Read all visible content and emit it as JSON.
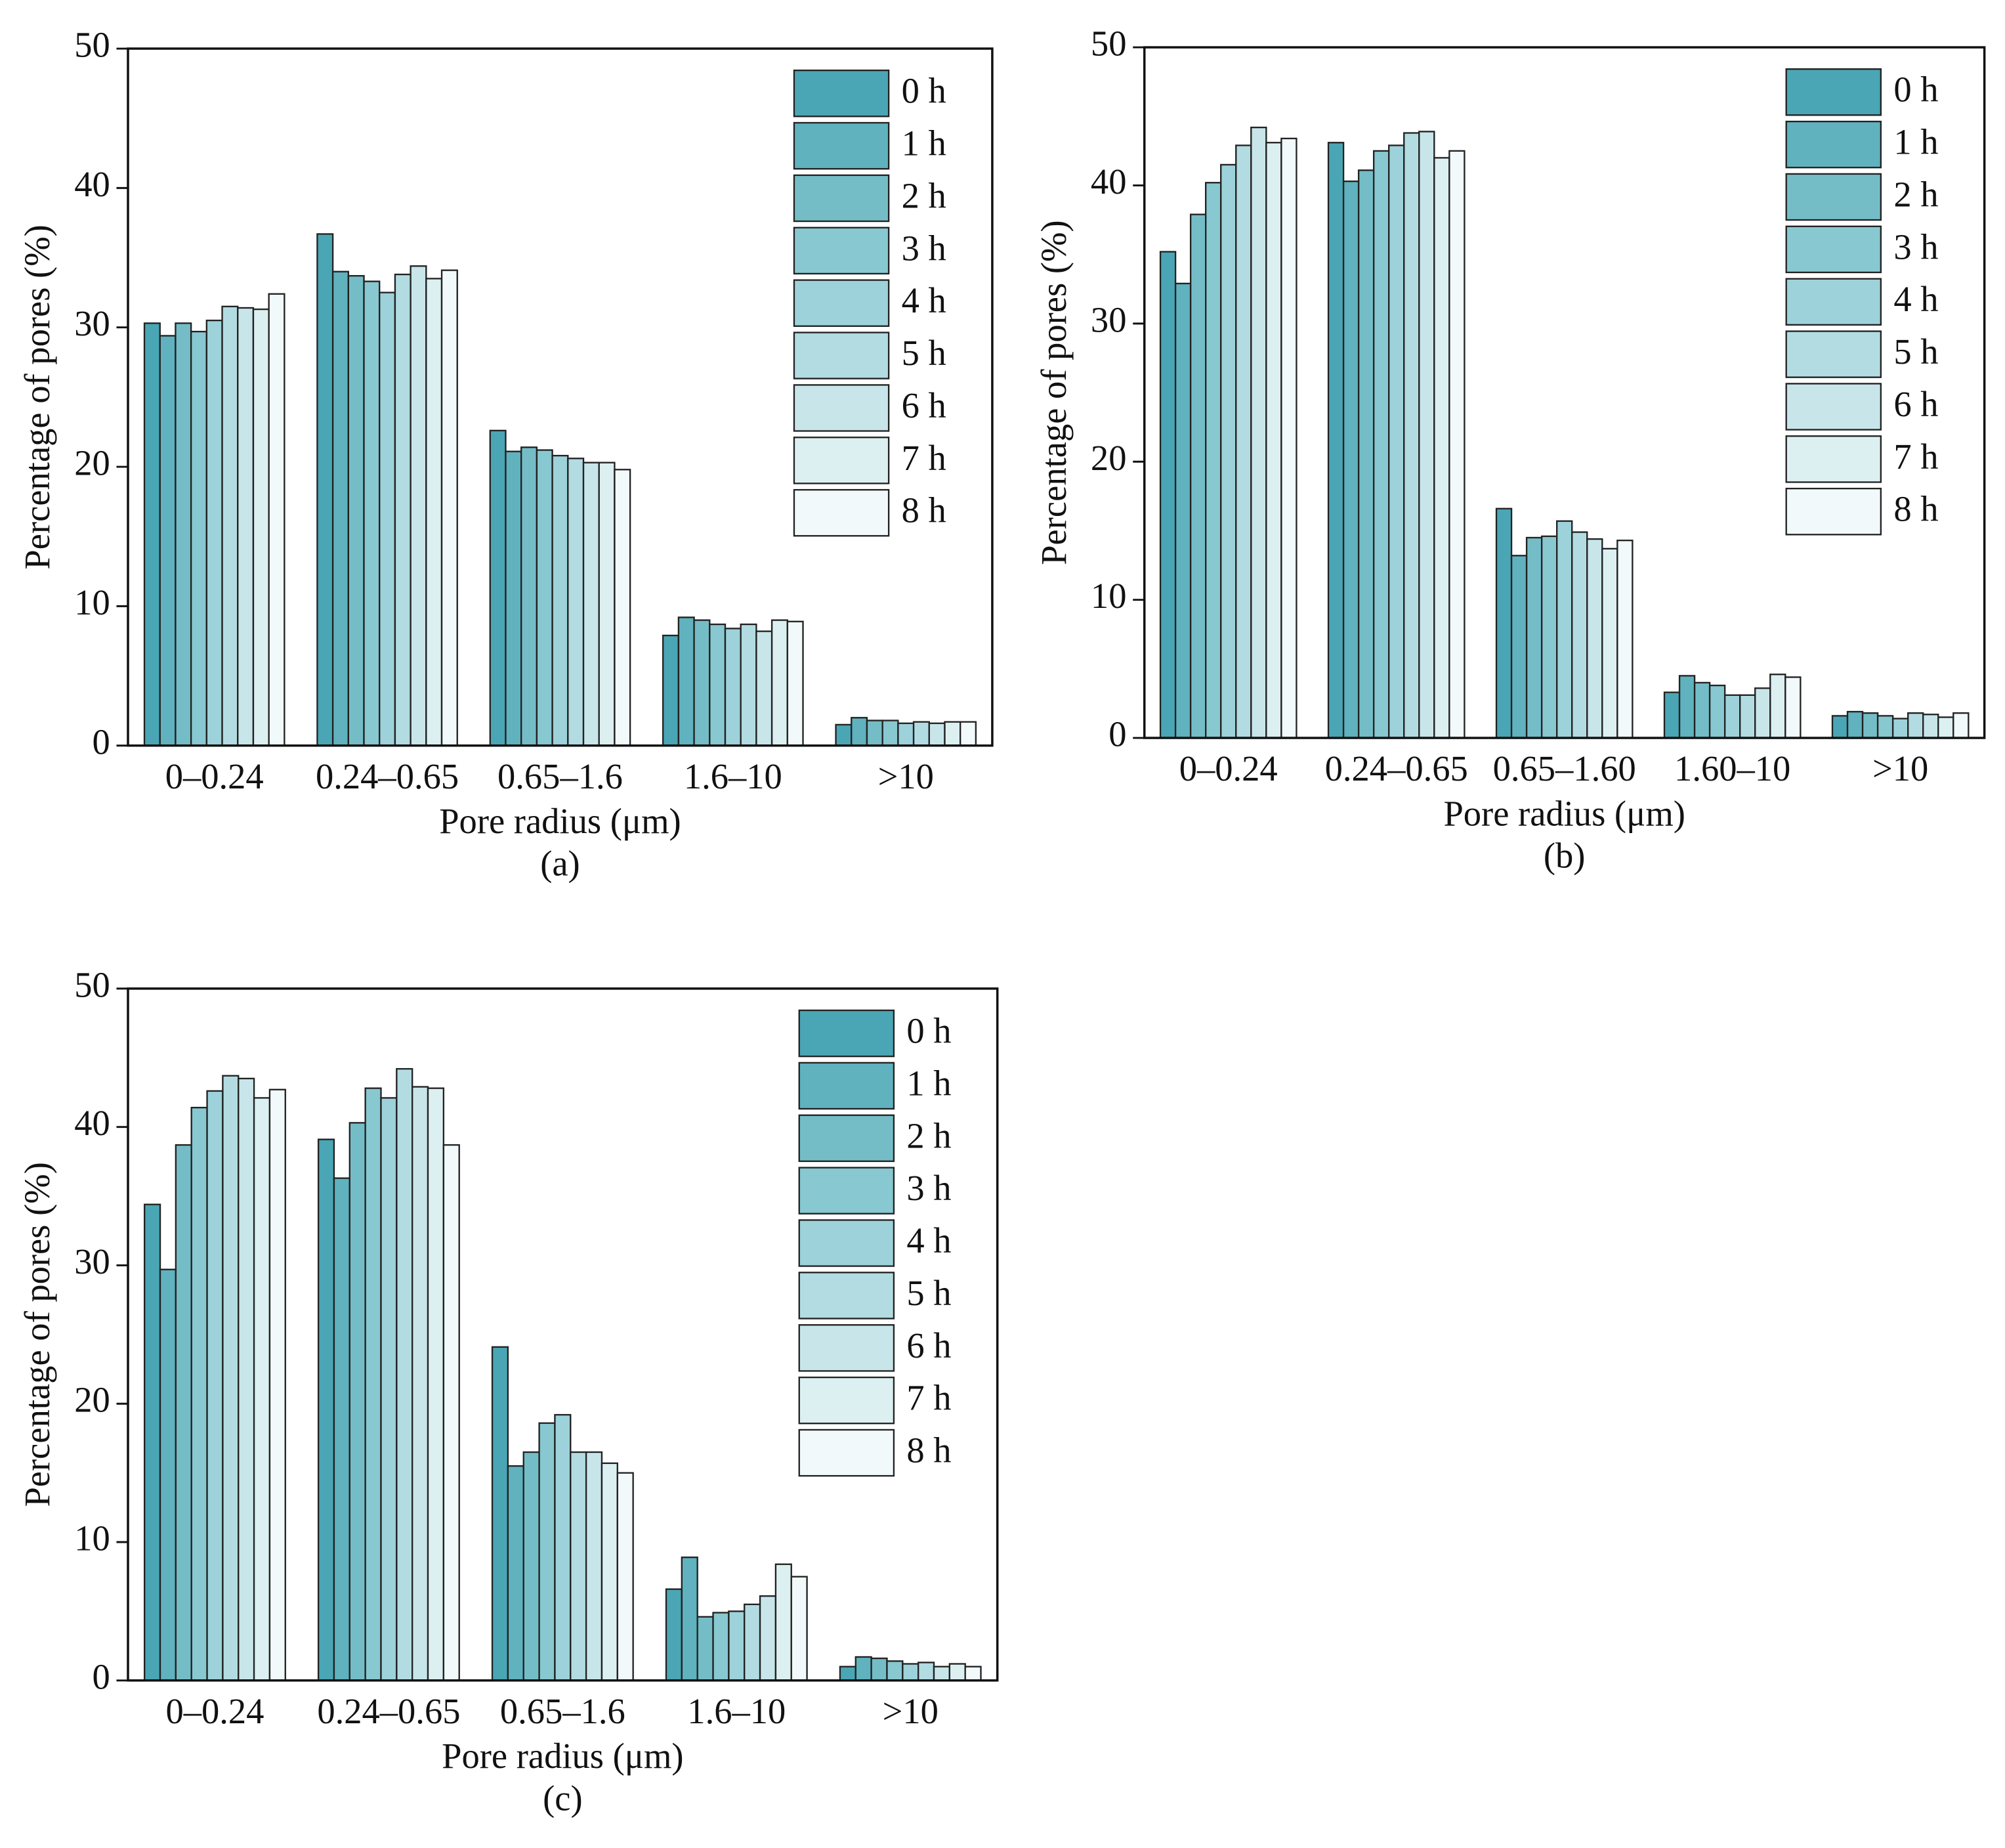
{
  "chart_data": [
    {
      "type": "bar",
      "caption": "(a)",
      "x_label": "Pore radius  (μm)",
      "y_label": "Percentage of pores  (%)",
      "categories": [
        "0–0.24",
        "0.24–0.65",
        "0.65–1.6",
        "1.6–10",
        ">10"
      ],
      "ylim": [
        0,
        50
      ],
      "yticks": [
        0,
        10,
        20,
        30,
        40,
        50
      ],
      "legend": "upper right",
      "series": [
        {
          "name": "0 h",
          "color": "#4aa6b4",
          "values": [
            30.3,
            36.7,
            22.6,
            7.9,
            1.5
          ]
        },
        {
          "name": "1 h",
          "color": "#5fb2be",
          "values": [
            29.4,
            34.0,
            21.1,
            9.2,
            2.0
          ]
        },
        {
          "name": "2 h",
          "color": "#74bdc7",
          "values": [
            30.3,
            33.7,
            21.4,
            9.0,
            1.8
          ]
        },
        {
          "name": "3 h",
          "color": "#88c8d0",
          "values": [
            29.7,
            33.3,
            21.2,
            8.7,
            1.8
          ]
        },
        {
          "name": "4 h",
          "color": "#9dd2da",
          "values": [
            30.5,
            32.5,
            20.8,
            8.4,
            1.6
          ]
        },
        {
          "name": "5 h",
          "color": "#b2dce2",
          "values": [
            31.5,
            33.8,
            20.6,
            8.7,
            1.7
          ]
        },
        {
          "name": "6 h",
          "color": "#c8e6ea",
          "values": [
            31.4,
            34.4,
            20.3,
            8.2,
            1.6
          ]
        },
        {
          "name": "7 h",
          "color": "#dcf0f2",
          "values": [
            31.3,
            33.5,
            20.3,
            9.0,
            1.7
          ]
        },
        {
          "name": "8 h",
          "color": "#f2f9fa",
          "values": [
            32.4,
            34.1,
            19.8,
            8.9,
            1.7
          ]
        }
      ]
    },
    {
      "type": "bar",
      "caption": "(b)",
      "x_label": "Pore radius  (μm)",
      "y_label": "Percentage of pores  (%)",
      "categories": [
        "0–0.24",
        "0.24–0.65",
        "0.65–1.60",
        "1.60–10",
        ">10"
      ],
      "ylim": [
        0,
        50
      ],
      "yticks": [
        0,
        10,
        20,
        30,
        40,
        50
      ],
      "legend": "upper right",
      "series": [
        {
          "name": "0 h",
          "color": "#4aa6b4",
          "values": [
            35.2,
            43.1,
            16.6,
            3.3,
            1.6
          ]
        },
        {
          "name": "1 h",
          "color": "#5fb2be",
          "values": [
            32.9,
            40.3,
            13.2,
            4.5,
            1.9
          ]
        },
        {
          "name": "2 h",
          "color": "#74bdc7",
          "values": [
            37.9,
            41.1,
            14.5,
            4.0,
            1.8
          ]
        },
        {
          "name": "3 h",
          "color": "#88c8d0",
          "values": [
            40.2,
            42.5,
            14.6,
            3.8,
            1.6
          ]
        },
        {
          "name": "4 h",
          "color": "#9dd2da",
          "values": [
            41.5,
            42.9,
            15.7,
            3.1,
            1.4
          ]
        },
        {
          "name": "5 h",
          "color": "#b2dce2",
          "values": [
            42.9,
            43.8,
            14.9,
            3.1,
            1.8
          ]
        },
        {
          "name": "6 h",
          "color": "#c8e6ea",
          "values": [
            44.2,
            43.9,
            14.4,
            3.6,
            1.7
          ]
        },
        {
          "name": "7 h",
          "color": "#dcf0f2",
          "values": [
            43.1,
            42.0,
            13.7,
            4.6,
            1.5
          ]
        },
        {
          "name": "8 h",
          "color": "#f2f9fa",
          "values": [
            43.4,
            42.5,
            14.3,
            4.4,
            1.8
          ]
        }
      ]
    },
    {
      "type": "bar",
      "caption": "(c)",
      "x_label": "Pore radius  (μm)",
      "y_label": "Percentage of pores  (%)",
      "categories": [
        "0–0.24",
        "0.24–0.65",
        "0.65–1.6",
        "1.6–10",
        ">10"
      ],
      "ylim": [
        0,
        50
      ],
      "yticks": [
        0,
        10,
        20,
        30,
        40,
        50
      ],
      "legend": "upper right",
      "series": [
        {
          "name": "0 h",
          "color": "#4aa6b4",
          "values": [
            34.4,
            39.1,
            24.1,
            6.6,
            1.0
          ]
        },
        {
          "name": "1 h",
          "color": "#5fb2be",
          "values": [
            29.7,
            36.3,
            15.5,
            8.9,
            1.7
          ]
        },
        {
          "name": "2 h",
          "color": "#74bdc7",
          "values": [
            38.7,
            40.3,
            16.5,
            4.6,
            1.6
          ]
        },
        {
          "name": "3 h",
          "color": "#88c8d0",
          "values": [
            41.4,
            42.8,
            18.6,
            4.9,
            1.4
          ]
        },
        {
          "name": "4 h",
          "color": "#9dd2da",
          "values": [
            42.6,
            42.1,
            19.2,
            5.0,
            1.2
          ]
        },
        {
          "name": "5 h",
          "color": "#b2dce2",
          "values": [
            43.7,
            44.2,
            16.5,
            5.5,
            1.3
          ]
        },
        {
          "name": "6 h",
          "color": "#c8e6ea",
          "values": [
            43.5,
            42.9,
            16.5,
            6.1,
            1.0
          ]
        },
        {
          "name": "7 h",
          "color": "#dcf0f2",
          "values": [
            42.1,
            42.8,
            15.7,
            8.4,
            1.2
          ]
        },
        {
          "name": "8 h",
          "color": "#f2f9fa",
          "values": [
            42.7,
            38.7,
            15.0,
            7.5,
            1.0
          ]
        }
      ]
    }
  ]
}
